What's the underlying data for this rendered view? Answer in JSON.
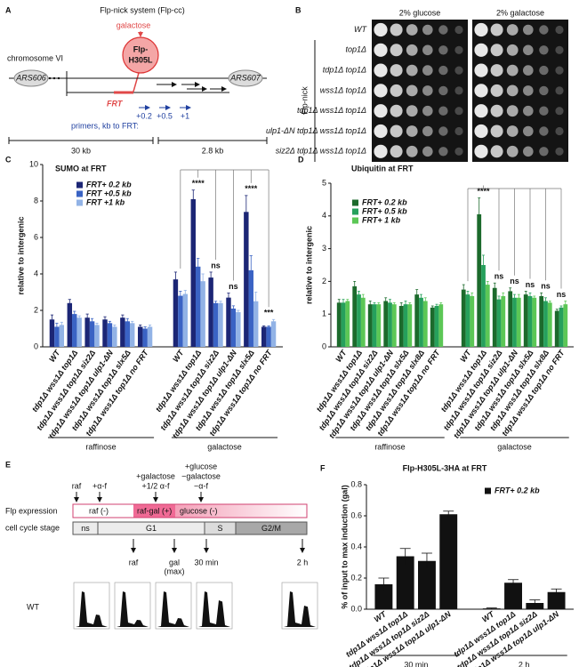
{
  "panel_a": {
    "label": "A",
    "title": "Flp-nick system (Flp-cc)",
    "inducer": "galactose",
    "enzyme": [
      "Flp-",
      "H305L"
    ],
    "chromosome": "chromosome VI",
    "ars_left": "ARS606",
    "ars_right": "ARS607",
    "site": "FRT",
    "primers_caption": "primers, kb to FRT:",
    "primers": [
      "+0.2",
      "+0.5",
      "+1"
    ],
    "scale": [
      "30 kb",
      "2.8 kb"
    ]
  },
  "panel_b": {
    "label": "B",
    "columns": [
      "2% glucose",
      "2% galactose"
    ],
    "group": "Flp-nick",
    "strains": [
      "WT",
      "top1Δ",
      "tdp1Δ top1Δ",
      "wss1Δ top1Δ",
      "tdp1Δ wss1Δ top1Δ",
      "ulp1-ΔN tdp1Δ wss1Δ top1Δ",
      "siz2Δ tdp1Δ wss1Δ top1Δ"
    ]
  },
  "panel_e": {
    "label": "E",
    "treatments": [
      [
        "raf"
      ],
      [
        "+α-f"
      ],
      [
        "+galactose",
        "+1/2 α-f"
      ],
      [
        "+glucose",
        "−galactose",
        "−α-f"
      ]
    ],
    "flp_row": "Flp expression",
    "flp_states": [
      "raf (-)",
      "raf-gal (+)",
      "glucose (-)"
    ],
    "cycle_row": "cell cycle stage",
    "stages": [
      "ns",
      "G1",
      "S",
      "G2/M"
    ],
    "timepoints": [
      [
        "raf"
      ],
      [
        "gal",
        "(max)"
      ],
      [
        "30 min"
      ],
      [
        "2 h"
      ]
    ],
    "strain": "WT"
  },
  "chart_data": [
    {
      "type": "bar",
      "panel_label": "C",
      "title": "SUMO at FRT",
      "y_label": "relative to intergenic",
      "categories": [
        "WT",
        "tdp1Δ wss1Δ top1Δ",
        "tdp1Δ wss1Δ top1Δ siz2Δ",
        "tdp1Δ wss1Δ top1Δ ulp1-ΔN",
        "tdp1Δ wss1Δ top1Δ slx5Δ",
        "tdp1Δ wss1Δ top1Δ no FRT",
        "WT",
        "tdp1Δ wss1Δ top1Δ",
        "tdp1Δ wss1Δ top1Δ siz2Δ",
        "tdp1Δ wss1Δ top1Δ ulp1-ΔN",
        "tdp1Δ wss1Δ top1Δ slx5Δ",
        "tdp1Δ wss1Δ top1Δ no FRT"
      ],
      "group_labels": [
        "raffinose",
        "galactose"
      ],
      "series": [
        {
          "name": "FRT+ 0.2 kb",
          "color": "#1c2675",
          "values": [
            1.5,
            2.4,
            1.6,
            1.5,
            1.6,
            1.1,
            3.7,
            8.1,
            3.8,
            2.7,
            7.4,
            1.1
          ],
          "errors": [
            0.25,
            0.2,
            0.2,
            0.15,
            0.15,
            0.1,
            0.4,
            0.5,
            0.3,
            0.25,
            0.9,
            0.05
          ]
        },
        {
          "name": "FRT +0.5 kb",
          "color": "#3a63c4",
          "values": [
            1.1,
            1.8,
            1.4,
            1.3,
            1.4,
            1.0,
            2.8,
            4.4,
            2.4,
            2.1,
            4.2,
            1.1
          ],
          "errors": [
            0.2,
            0.15,
            0.15,
            0.1,
            0.15,
            0.1,
            0.25,
            0.45,
            0.1,
            0.15,
            0.8,
            0.05
          ]
        },
        {
          "name": "FRT +1 kb",
          "color": "#92b3e6",
          "values": [
            1.2,
            1.6,
            1.2,
            1.1,
            1.3,
            1.1,
            2.9,
            3.6,
            2.4,
            1.9,
            2.5,
            1.4
          ],
          "errors": [
            0.15,
            0.1,
            0.1,
            0.1,
            0.1,
            0.1,
            0.2,
            0.4,
            0.1,
            0.1,
            0.5,
            0.1
          ]
        }
      ],
      "annotations": [
        "****",
        "ns",
        "ns",
        "****",
        "***"
      ],
      "ylim": [
        0,
        10
      ],
      "yticks": [
        0,
        2,
        4,
        6,
        8,
        10
      ]
    },
    {
      "type": "bar",
      "panel_label": "D",
      "title": "Ubiquitin at FRT",
      "y_label": "relative to intergenic",
      "categories": [
        "WT",
        "tdp1Δ wss1Δ top1Δ",
        "tdp1Δ wss1Δ top1Δ siz2Δ",
        "tdp1Δ wss1Δ top1Δ ulp1-ΔN",
        "tdp1Δ wss1Δ top1Δ slx5Δ",
        "tdp1Δ wss1Δ top1Δ slx8Δ",
        "tdp1Δ wss1Δ top1Δ no FRT",
        "WT",
        "tdp1Δ wss1Δ top1Δ",
        "tdp1Δ wss1Δ top1Δ siz2Δ",
        "tdp1Δ wss1Δ top1Δ ulp1-ΔN",
        "tdp1Δ wss1Δ top1Δ slx5Δ",
        "tdp1Δ wss1Δ top1Δ slx8Δ",
        "tdp1Δ wss1Δ top1Δ no FRT"
      ],
      "group_labels": [
        "raffinose",
        "galactose"
      ],
      "series": [
        {
          "name": "FRT+ 0.2 kb",
          "color": "#1c6a2c",
          "values": [
            1.35,
            1.85,
            1.3,
            1.4,
            1.25,
            1.6,
            1.2,
            1.75,
            4.05,
            1.8,
            1.7,
            1.6,
            1.55,
            1.1
          ],
          "errors": [
            0.1,
            0.15,
            0.1,
            0.1,
            0.1,
            0.15,
            0.05,
            0.15,
            0.5,
            0.15,
            0.1,
            0.1,
            0.1,
            0.05
          ]
        },
        {
          "name": "FRT+ 0.5 kb",
          "color": "#26a05c",
          "values": [
            1.35,
            1.6,
            1.3,
            1.35,
            1.3,
            1.5,
            1.25,
            1.6,
            2.5,
            1.45,
            1.5,
            1.55,
            1.4,
            1.2
          ],
          "errors": [
            0.1,
            0.1,
            0.05,
            0.1,
            0.1,
            0.1,
            0.05,
            0.1,
            0.3,
            0.1,
            0.1,
            0.1,
            0.1,
            0.05
          ]
        },
        {
          "name": "FRT+ 1 kb",
          "color": "#5cc756",
          "values": [
            1.4,
            1.5,
            1.3,
            1.3,
            1.3,
            1.4,
            1.3,
            1.55,
            1.9,
            1.55,
            1.5,
            1.5,
            1.35,
            1.3
          ],
          "errors": [
            0.05,
            0.1,
            0.05,
            0.05,
            0.05,
            0.1,
            0.05,
            0.1,
            0.1,
            0.1,
            0.1,
            0.05,
            0.05,
            0.1
          ]
        }
      ],
      "annotations": [
        "****",
        "ns",
        "ns",
        "ns",
        "ns",
        "ns"
      ],
      "ylim": [
        0,
        5
      ],
      "yticks": [
        0,
        1,
        2,
        3,
        4,
        5
      ]
    },
    {
      "type": "bar",
      "panel_label": "F",
      "title": "Flp-H305L-3HA at FRT",
      "y_label": "% of input to max induction (gal)",
      "categories": [
        "WT",
        "tdp1Δ wss1Δ top1Δ",
        "tdp1Δ wss1Δ top1Δ siz2Δ",
        "tdp1Δ wss1Δ top1Δ ulp1-ΔN",
        "WT",
        "tdp1Δ wss1Δ top1Δ",
        "tdp1Δ wss1Δ top1Δ siz2Δ",
        "tdp1Δ wss1Δ top1Δ ulp1-ΔN"
      ],
      "group_labels": [
        "30 min",
        "2 h"
      ],
      "series": [
        {
          "name": "FRT+ 0.2 kb",
          "color": "#111111",
          "values": [
            0.16,
            0.34,
            0.31,
            0.61,
            0.005,
            0.17,
            0.04,
            0.11
          ],
          "errors": [
            0.04,
            0.05,
            0.05,
            0.02,
            0.003,
            0.02,
            0.02,
            0.02
          ]
        }
      ],
      "ylim": [
        0,
        0.8
      ],
      "yticks": [
        {
          "value": 0,
          "label": "0.0"
        },
        0.2,
        0.4,
        0.6,
        0.8
      ]
    }
  ]
}
